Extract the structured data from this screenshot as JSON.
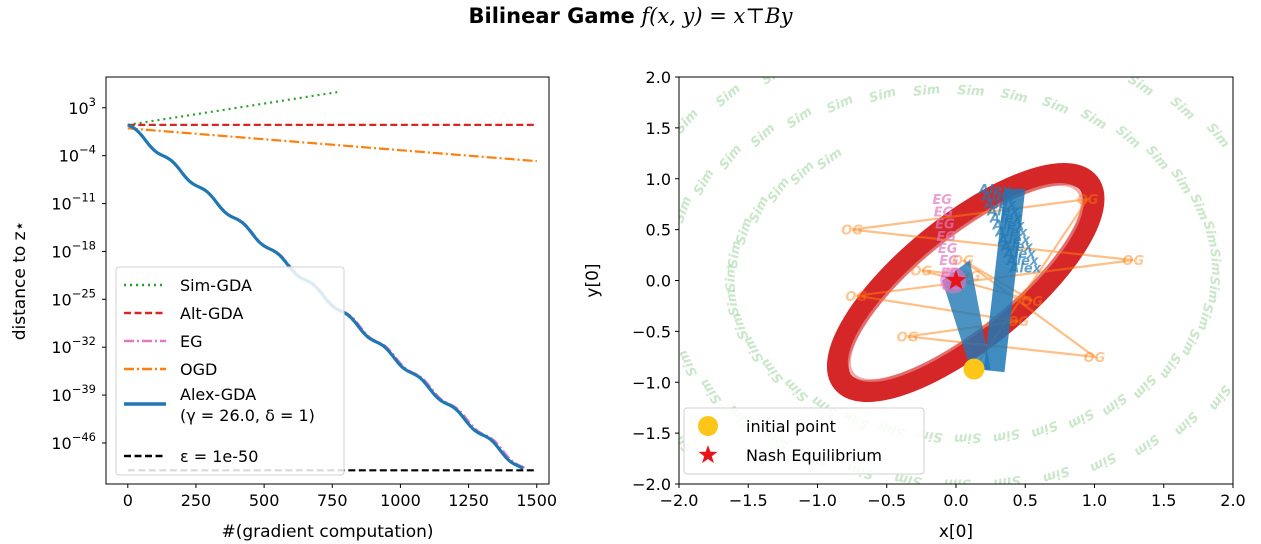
{
  "title": {
    "bold": "Bilinear Game",
    "math": "f(x, y) = x⊤By"
  },
  "chart_data": [
    {
      "type": "line",
      "xlabel": "#(gradient computation)",
      "ylabel": "distance to z⋆",
      "yscale": "log",
      "xlim": [
        -80,
        1545
      ],
      "ylim_log10": [
        -52,
        7.5
      ],
      "xticks": [
        0,
        250,
        500,
        750,
        1000,
        1250,
        1500
      ],
      "xtick_labels": [
        "0",
        "250",
        "500",
        "750",
        "1000",
        "1250",
        "1500"
      ],
      "yticks_log10": [
        3,
        -4,
        -11,
        -18,
        -25,
        -32,
        -39,
        -46
      ],
      "ytick_labels": [
        "3",
        "−4",
        "−11",
        "−18",
        "−25",
        "−32",
        "−39",
        "−46"
      ],
      "ytick_base": "10",
      "grid": false,
      "legend_position": "lower-left",
      "series": [
        {
          "name": "Sim-GDA",
          "color": "#2ca02c",
          "style": "dotted",
          "x": [
            0,
            770
          ],
          "log10_y": [
            0.5,
            5.3
          ]
        },
        {
          "name": "Alt-GDA",
          "color": "#d62728",
          "style": "dashed",
          "x": [
            0,
            1500
          ],
          "log10_y": [
            0.5,
            0.5
          ]
        },
        {
          "name": "EG",
          "color": "#e377c2",
          "style": "dashdot",
          "x": [
            0,
            1460
          ],
          "log10_y": [
            0.5,
            -50
          ]
        },
        {
          "name": "OGD",
          "color": "#ff7f0e",
          "style": "dashdot",
          "x": [
            0,
            1500
          ],
          "log10_y": [
            0.0,
            -4.8
          ]
        },
        {
          "name": "Alex-GDA",
          "subname": "(γ = 26.0, δ = 1)",
          "color": "#1f77b4",
          "style": "solid",
          "x": [
            0,
            1450
          ],
          "log10_y": [
            0.5,
            -50
          ]
        },
        {
          "name": "ε = 1e-50",
          "color": "#000000",
          "style": "dashed",
          "x": [
            0,
            1500
          ],
          "log10_y": [
            -50,
            -50
          ]
        }
      ]
    },
    {
      "type": "scatter",
      "xlabel": "x[0]",
      "ylabel": "y[0]",
      "xlim": [
        -2.0,
        2.0
      ],
      "ylim": [
        -2.0,
        2.0
      ],
      "xticks": [
        -2.0,
        -1.5,
        -1.0,
        -0.5,
        0.0,
        0.5,
        1.0,
        1.5,
        2.0
      ],
      "xtick_labels": [
        "−2.0",
        "−1.5",
        "−1.0",
        "−0.5",
        "0.0",
        "0.5",
        "1.0",
        "1.5",
        "2.0"
      ],
      "yticks": [
        2.0,
        1.5,
        1.0,
        0.5,
        0.0,
        -0.5,
        -1.0,
        -1.5,
        -2.0
      ],
      "ytick_labels": [
        "2.0",
        "1.5",
        "1.0",
        "0.5",
        "0.0",
        "−0.5",
        "−1.0",
        "−1.5",
        "−2.0"
      ],
      "grid": false,
      "legend_position": "lower-left",
      "marker_labels": {
        "sim": "Sim",
        "og": "OG",
        "eg": "EG",
        "alex": "Alex"
      },
      "initial_point": {
        "name": "initial point",
        "x": 0.13,
        "y": -0.87,
        "color": "#ffc61a"
      },
      "nash_equilibrium": {
        "name": "Nash Equilibrium",
        "x": 0.0,
        "y": 0.0,
        "color": "#e8141a"
      },
      "og_path": [
        [
          0.13,
          -0.87
        ],
        [
          0.95,
          0.8
        ],
        [
          -0.75,
          0.5
        ],
        [
          1.28,
          0.2
        ],
        [
          -0.72,
          -0.15
        ],
        [
          0.45,
          -0.4
        ],
        [
          -0.35,
          -0.55
        ],
        [
          1.0,
          -0.75
        ],
        [
          0.05,
          0.2
        ],
        [
          0.55,
          -0.2
        ],
        [
          -0.25,
          0.1
        ],
        [
          0.1,
          0.05
        ]
      ]
    }
  ]
}
